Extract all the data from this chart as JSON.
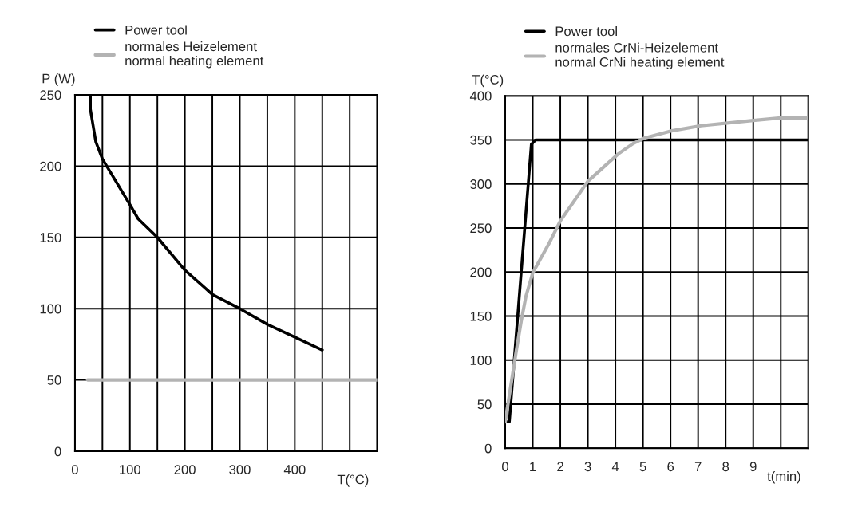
{
  "chart_data": [
    {
      "type": "line",
      "xlabel": "T(°C)",
      "ylabel": "P (W)",
      "xlim": [
        0,
        550
      ],
      "ylim": [
        0,
        250
      ],
      "xticks": [
        0,
        {
          "value": 50,
          "label": null
        },
        100,
        {
          "value": 150,
          "label": null
        },
        200,
        {
          "value": 250,
          "label": null
        },
        300,
        {
          "value": 350,
          "label": null
        },
        400,
        {
          "value": 450,
          "label": null
        },
        {
          "value": 500,
          "label": null
        },
        {
          "value": 550,
          "label": null
        }
      ],
      "yticks": [
        0,
        50,
        100,
        150,
        200,
        250
      ],
      "grid": true,
      "legend": "top left",
      "series": [
        {
          "name": "Power tool",
          "color": "#000000",
          "x": [
            28,
            28,
            38,
            50,
            100,
            115,
            150,
            200,
            250,
            300,
            350,
            400,
            450
          ],
          "values": [
            250,
            240,
            217,
            205,
            173,
            163,
            150,
            127,
            110,
            100,
            89,
            80,
            71
          ]
        },
        {
          "name": "normales Heizelement\nnormal heating element",
          "color": "#b3b3b3",
          "x": [
            23,
            550
          ],
          "values": [
            50,
            50
          ]
        }
      ]
    },
    {
      "type": "line",
      "xlabel": "t(min)",
      "ylabel": "T(°C)",
      "xlim": [
        0,
        11
      ],
      "ylim": [
        0,
        400
      ],
      "xticks": [
        0,
        1,
        2,
        3,
        4,
        5,
        6,
        7,
        8,
        9,
        {
          "value": 10,
          "label": null
        },
        {
          "value": 11,
          "label": null
        }
      ],
      "yticks": [
        0,
        50,
        100,
        150,
        200,
        250,
        300,
        350,
        400
      ],
      "grid": true,
      "legend": "top left",
      "series": [
        {
          "name": "Power tool",
          "color": "#000000",
          "x": [
            0,
            0.15,
            0.95,
            1.1,
            11
          ],
          "values": [
            30,
            30,
            345,
            350,
            350
          ]
        },
        {
          "name": "normales CrNi-Heizelement\nnormal CrNi heating element",
          "color": "#b3b3b3",
          "x": [
            0,
            0.4,
            0.58,
            0.75,
            1.0,
            1.6,
            2.0,
            3.0,
            4.1,
            4.65,
            5.05,
            6.0,
            7.1,
            9.0,
            10.0,
            11
          ],
          "values": [
            30,
            110,
            144,
            172,
            199,
            233,
            258,
            303,
            334,
            346,
            352,
            360,
            366,
            372,
            375,
            375
          ]
        }
      ]
    }
  ]
}
